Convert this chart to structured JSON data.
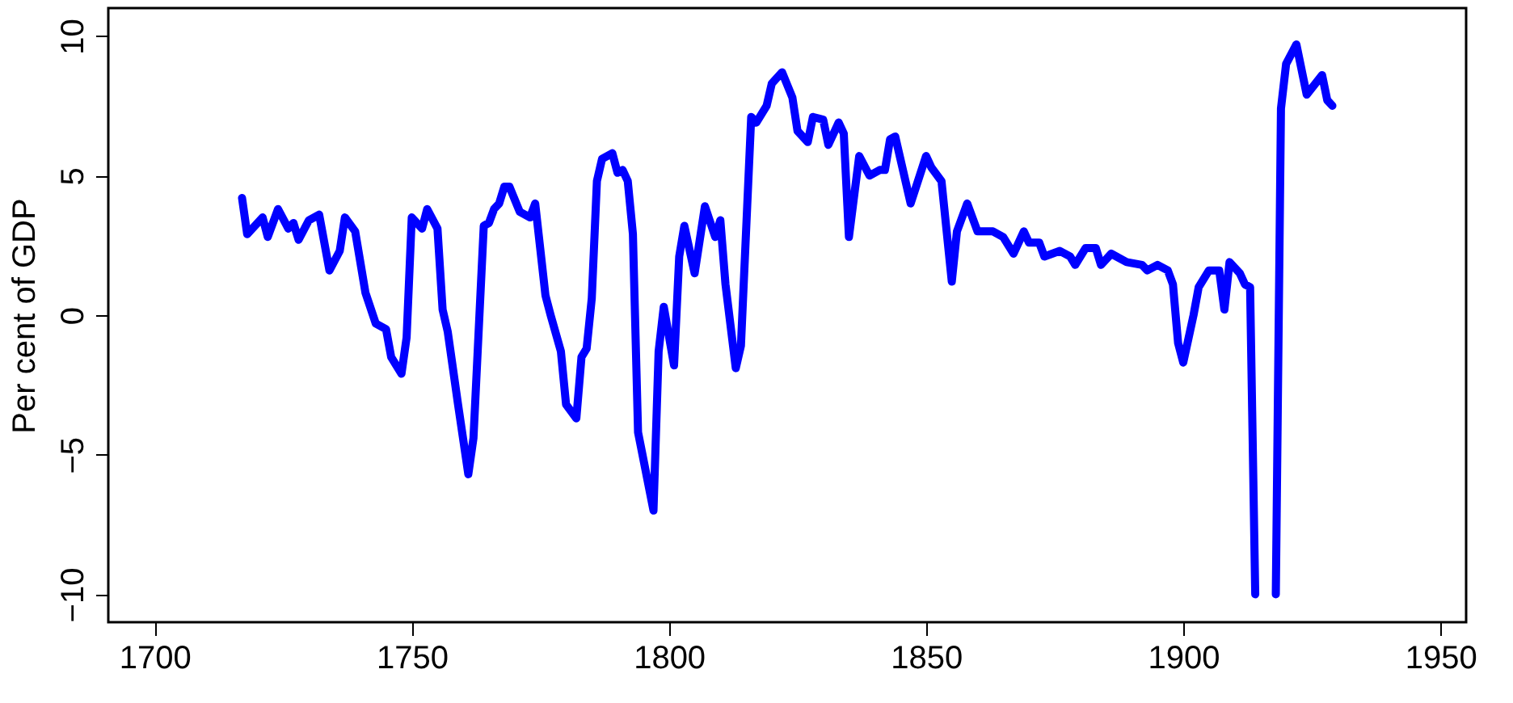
{
  "chart_data": {
    "type": "line",
    "ylabel": "Per cent of GDP",
    "xlim": [
      1691,
      1955
    ],
    "ylim": [
      -11,
      11
    ],
    "xticks": [
      1700,
      1750,
      1800,
      1850,
      1900,
      1950
    ],
    "yticks": [
      -10,
      -5,
      0,
      5,
      10
    ],
    "grid": false,
    "line_style": "solid",
    "x": [
      1717,
      1718,
      1721,
      1722,
      1724,
      1726,
      1727,
      1728,
      1730,
      1732,
      1734,
      1736,
      1737,
      1739,
      1741,
      1743,
      1745,
      1746,
      1748,
      1749,
      1750,
      1752,
      1753,
      1755,
      1756,
      1757,
      1759,
      1761,
      1762,
      1764,
      1765,
      1766,
      1767,
      1768,
      1769,
      1771,
      1773,
      1774,
      1776,
      1777,
      1779,
      1780,
      1782,
      1783,
      1784,
      1785,
      1786,
      1787,
      1789,
      1790,
      1791,
      1792,
      1793,
      1794,
      1797,
      1798,
      1799,
      1801,
      1802,
      1803,
      1805,
      1807,
      1809,
      1810,
      1811,
      1813,
      1814,
      1816,
      1817,
      1819,
      1820,
      1822,
      1824,
      1825,
      1827,
      1828,
      1830,
      1831,
      1833,
      1834,
      1835,
      1837,
      1839,
      1841,
      1842,
      1843,
      1844,
      1847,
      1850,
      1851,
      1853,
      1855,
      1856,
      1858,
      1860,
      1863,
      1865,
      1867,
      1869,
      1870,
      1872,
      1873,
      1876,
      1878,
      1879,
      1881,
      1883,
      1884,
      1886,
      1889,
      1892,
      1893,
      1895,
      1897,
      1898,
      1899,
      1900,
      1902,
      1903,
      1905,
      1907,
      1908,
      1909,
      1911,
      1912,
      1913,
      1914,
      1915,
      1916,
      1917,
      1918,
      1919,
      1920,
      1922,
      1924,
      1927,
      1928,
      1929
    ],
    "series": [
      {
        "color": "#0000ff",
        "values": [
          4.2,
          2.9,
          3.5,
          2.8,
          3.8,
          3.1,
          3.3,
          2.7,
          3.4,
          3.6,
          1.6,
          2.3,
          3.5,
          3.0,
          0.8,
          -0.3,
          -0.5,
          -1.5,
          -2.1,
          -0.8,
          3.5,
          3.1,
          3.8,
          3.1,
          0.2,
          -0.6,
          -3.2,
          -5.7,
          -4.4,
          3.2,
          3.3,
          3.8,
          4.0,
          4.6,
          4.6,
          3.7,
          3.5,
          4.0,
          0.7,
          0.0,
          -1.3,
          -3.2,
          -3.7,
          -1.5,
          -1.2,
          0.6,
          4.8,
          5.6,
          5.8,
          5.1,
          5.2,
          4.8,
          2.9,
          -4.2,
          -7.0,
          -1.3,
          0.3,
          -1.8,
          2.1,
          3.2,
          1.5,
          3.9,
          2.8,
          3.4,
          1.1,
          -1.9,
          -1.1,
          7.1,
          6.9,
          7.5,
          8.3,
          8.7,
          7.8,
          6.6,
          6.2,
          7.1,
          7.0,
          6.1,
          6.9,
          6.5,
          2.8,
          5.7,
          5.0,
          5.2,
          5.2,
          6.3,
          6.4,
          4.0,
          5.7,
          5.3,
          4.8,
          1.2,
          3.0,
          4.0,
          3.0,
          3.0,
          2.8,
          2.2,
          3.0,
          2.6,
          2.6,
          2.1,
          2.3,
          2.1,
          1.8,
          2.4,
          2.4,
          1.8,
          2.2,
          1.9,
          1.8,
          1.6,
          1.8,
          1.6,
          1.1,
          -1.0,
          -1.7,
          0.0,
          1.0,
          1.6,
          1.6,
          0.2,
          1.9,
          1.5,
          1.1,
          1.0,
          -10,
          null,
          null,
          null,
          -10,
          7.4,
          9.0,
          9.7,
          7.9,
          8.6,
          7.7,
          7.5
        ]
      }
    ]
  }
}
